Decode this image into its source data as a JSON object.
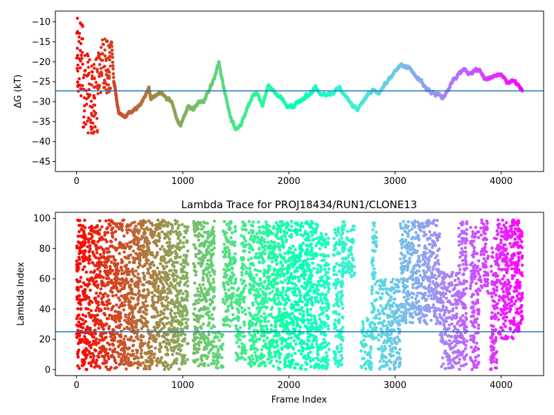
{
  "chart_data": [
    {
      "type": "scatter",
      "title": "",
      "xlabel": "",
      "ylabel": "ΔG (kT)",
      "xlim": [
        -200,
        4400
      ],
      "ylim": [
        -47.5,
        -7.3
      ],
      "xticks": [
        0,
        1000,
        2000,
        3000,
        4000
      ],
      "yticks": [
        -45,
        -40,
        -35,
        -30,
        -25,
        -20,
        -15,
        -10
      ],
      "hline": -27.3,
      "hline_color": "#1f77b4",
      "colormap": "rainbow (red → purple with frame index)",
      "series_profile": [
        [
          0,
          -10
        ],
        [
          20,
          -28
        ],
        [
          40,
          -14
        ],
        [
          60,
          -22
        ],
        [
          80,
          -20
        ],
        [
          100,
          -30
        ],
        [
          120,
          -32
        ],
        [
          150,
          -35
        ],
        [
          170,
          -37
        ],
        [
          200,
          -28
        ],
        [
          230,
          -22
        ],
        [
          260,
          -17
        ],
        [
          300,
          -16
        ],
        [
          330,
          -15
        ],
        [
          350,
          -25
        ],
        [
          380,
          -30
        ],
        [
          400,
          -33
        ],
        [
          450,
          -34
        ],
        [
          500,
          -33
        ],
        [
          550,
          -32
        ],
        [
          600,
          -31
        ],
        [
          650,
          -28
        ],
        [
          680,
          -26
        ],
        [
          700,
          -29
        ],
        [
          800,
          -28
        ],
        [
          900,
          -30
        ],
        [
          950,
          -35
        ],
        [
          980,
          -36
        ],
        [
          1000,
          -35
        ],
        [
          1050,
          -31
        ],
        [
          1100,
          -32
        ],
        [
          1150,
          -30
        ],
        [
          1200,
          -30
        ],
        [
          1250,
          -27
        ],
        [
          1300,
          -24
        ],
        [
          1340,
          -20
        ],
        [
          1380,
          -26
        ],
        [
          1420,
          -31
        ],
        [
          1460,
          -35
        ],
        [
          1500,
          -37
        ],
        [
          1550,
          -36
        ],
        [
          1600,
          -32
        ],
        [
          1650,
          -29
        ],
        [
          1700,
          -28
        ],
        [
          1750,
          -31
        ],
        [
          1800,
          -26
        ],
        [
          1850,
          -27
        ],
        [
          1900,
          -29
        ],
        [
          1950,
          -30
        ],
        [
          2000,
          -31
        ],
        [
          2050,
          -31
        ],
        [
          2100,
          -30
        ],
        [
          2150,
          -29
        ],
        [
          2200,
          -28
        ],
        [
          2250,
          -26
        ],
        [
          2300,
          -28
        ],
        [
          2350,
          -28
        ],
        [
          2400,
          -28
        ],
        [
          2450,
          -27
        ],
        [
          2480,
          -26
        ],
        [
          2520,
          -28
        ],
        [
          2550,
          -29
        ],
        [
          2600,
          -31
        ],
        [
          2650,
          -32
        ],
        [
          2700,
          -30
        ],
        [
          2750,
          -28
        ],
        [
          2800,
          -27
        ],
        [
          2850,
          -28
        ],
        [
          2900,
          -26
        ],
        [
          2950,
          -24
        ],
        [
          3000,
          -22
        ],
        [
          3050,
          -21
        ],
        [
          3100,
          -21
        ],
        [
          3150,
          -22
        ],
        [
          3200,
          -24
        ],
        [
          3250,
          -25
        ],
        [
          3300,
          -27
        ],
        [
          3350,
          -28
        ],
        [
          3400,
          -28
        ],
        [
          3450,
          -29
        ],
        [
          3500,
          -27
        ],
        [
          3550,
          -25
        ],
        [
          3600,
          -23
        ],
        [
          3650,
          -22
        ],
        [
          3700,
          -23
        ],
        [
          3750,
          -22
        ],
        [
          3800,
          -22
        ],
        [
          3850,
          -24
        ],
        [
          3900,
          -24
        ],
        [
          3950,
          -23
        ],
        [
          4000,
          -23
        ],
        [
          4050,
          -25
        ],
        [
          4100,
          -25
        ],
        [
          4150,
          -26
        ],
        [
          4200,
          -27
        ]
      ],
      "early_scatter_ranges": [
        {
          "x": [
            0,
            60
          ],
          "y": [
            -30,
            -9
          ]
        },
        {
          "x": [
            60,
            200
          ],
          "y": [
            -38,
            -18
          ]
        },
        {
          "x": [
            200,
            320
          ],
          "y": [
            -28,
            -14
          ]
        }
      ]
    },
    {
      "type": "scatter",
      "title": "Lambda Trace for PROJ18434/RUN1/CLONE13",
      "xlabel": "Frame Index",
      "ylabel": "Lambda Index",
      "xlim": [
        -200,
        4400
      ],
      "ylim": [
        -4,
        104
      ],
      "xticks": [
        0,
        1000,
        2000,
        3000,
        4000
      ],
      "yticks": [
        0,
        20,
        40,
        60,
        80,
        100
      ],
      "hline": 25,
      "hline_color": "#1f77b4",
      "colormap": "rainbow (red → purple with frame index)",
      "lambda_bands": [
        {
          "x": [
            0,
            750
          ],
          "y": [
            0,
            99
          ]
        },
        {
          "x": [
            750,
            1000
          ],
          "y": [
            0,
            99
          ]
        },
        {
          "x": [
            1000,
            1050
          ],
          "y": [
            4,
            99
          ]
        },
        {
          "x": [
            1100,
            1300
          ],
          "y": [
            2,
            99
          ]
        },
        {
          "x": [
            1300,
            1380
          ],
          "y": [
            0,
            25
          ]
        },
        {
          "x": [
            1380,
            1500
          ],
          "y": [
            28,
            99
          ]
        },
        {
          "x": [
            1500,
            1550
          ],
          "y": [
            0,
            55
          ]
        },
        {
          "x": [
            1550,
            1600
          ],
          "y": [
            2,
            98
          ]
        },
        {
          "x": [
            1620,
            1860
          ],
          "y": [
            2,
            98
          ]
        },
        {
          "x": [
            1860,
            2120
          ],
          "y": [
            0,
            98
          ]
        },
        {
          "x": [
            2120,
            2270
          ],
          "y": [
            0,
            98
          ]
        },
        {
          "x": [
            2270,
            2380
          ],
          "y": [
            0,
            90
          ]
        },
        {
          "x": [
            2420,
            2510
          ],
          "y": [
            2,
            94
          ]
        },
        {
          "x": [
            2500,
            2620
          ],
          "y": [
            60,
            99
          ]
        },
        {
          "x": [
            2680,
            2780
          ],
          "y": [
            0,
            35
          ]
        },
        {
          "x": [
            2780,
            2830
          ],
          "y": [
            20,
            99
          ]
        },
        {
          "x": [
            2840,
            3050
          ],
          "y": [
            0,
            60
          ]
        },
        {
          "x": [
            3050,
            3200
          ],
          "y": [
            30,
            99
          ]
        },
        {
          "x": [
            3200,
            3420
          ],
          "y": [
            30,
            99
          ]
        },
        {
          "x": [
            3420,
            3600
          ],
          "y": [
            0,
            65
          ]
        },
        {
          "x": [
            3600,
            3680
          ],
          "y": [
            0,
            99
          ]
        },
        {
          "x": [
            3710,
            3790
          ],
          "y": [
            0,
            95
          ]
        },
        {
          "x": [
            3800,
            3880
          ],
          "y": [
            50,
            99
          ]
        },
        {
          "x": [
            3900,
            3960
          ],
          "y": [
            0,
            90
          ]
        },
        {
          "x": [
            3960,
            4200
          ],
          "y": [
            20,
            99
          ]
        }
      ]
    }
  ]
}
